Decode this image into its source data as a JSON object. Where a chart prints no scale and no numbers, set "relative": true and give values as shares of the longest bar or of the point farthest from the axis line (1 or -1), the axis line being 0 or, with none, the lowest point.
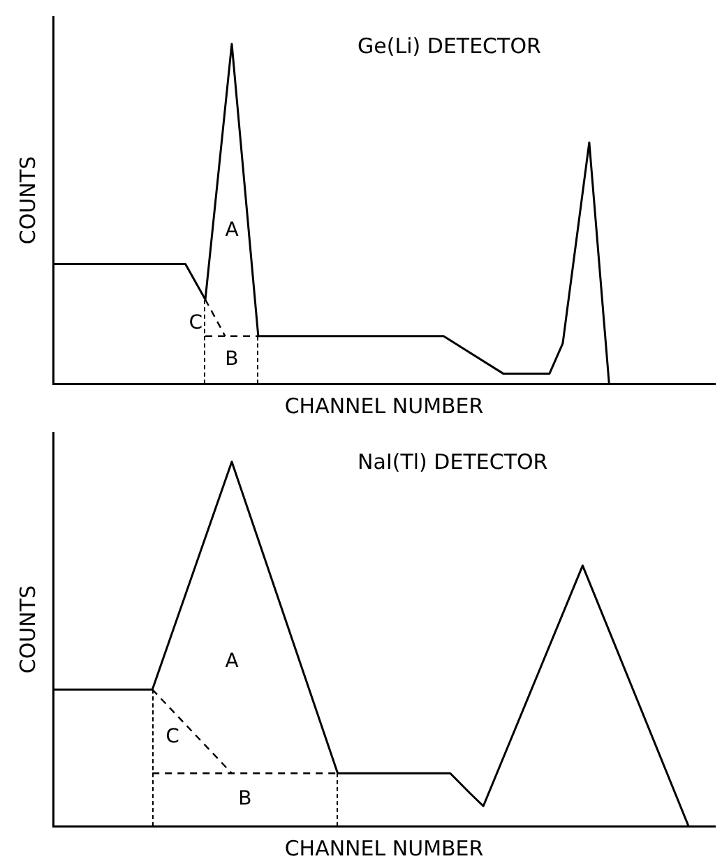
{
  "chart_data": [
    {
      "type": "line",
      "title": "Ge(Li) DETECTOR",
      "xlabel": "CHANNEL NUMBER",
      "ylabel": "COUNTS",
      "relative": true,
      "grid": false,
      "legend": false,
      "marker": "none",
      "categories": [
        null,
        null,
        null,
        null,
        null,
        null,
        null,
        null,
        null,
        null,
        null,
        null,
        null,
        null,
        null,
        null,
        null,
        null,
        null,
        null,
        null,
        null,
        null,
        null,
        null,
        null,
        null,
        null,
        null,
        null,
        null,
        null,
        null,
        null,
        null,
        null,
        null,
        null,
        null,
        null,
        null,
        null,
        null,
        null,
        null,
        null,
        null,
        null,
        null,
        null,
        null,
        null,
        null,
        null,
        null,
        null,
        null,
        null,
        null,
        null,
        null,
        null,
        null,
        null,
        null,
        null,
        null,
        null,
        null,
        null,
        null,
        null,
        null,
        null,
        null,
        null,
        null,
        null,
        null,
        null,
        null,
        null,
        null,
        null,
        null,
        null,
        null,
        null,
        null,
        null,
        null,
        null,
        null,
        null,
        null,
        null,
        null,
        null,
        null,
        null,
        null
      ],
      "series": [
        {
          "color": "#000000",
          "line_style": "solid",
          "values": [
            0.352,
            null,
            null,
            null,
            null,
            null,
            null,
            null,
            null,
            null,
            null,
            null,
            null,
            null,
            null,
            null,
            null,
            null,
            null,
            null,
            0.352,
            null,
            null,
            0.248,
            null,
            null,
            null,
            1,
            null,
            null,
            null,
            0.14,
            null,
            null,
            null,
            null,
            null,
            null,
            null,
            null,
            null,
            null,
            null,
            null,
            null,
            null,
            null,
            null,
            null,
            null,
            null,
            null,
            null,
            null,
            null,
            null,
            null,
            null,
            null,
            0.14,
            null,
            null,
            null,
            null,
            null,
            null,
            null,
            null,
            0.03,
            null,
            null,
            null,
            null,
            null,
            null,
            0.03,
            null,
            0.119,
            null,
            null,
            null,
            0.71,
            null,
            null,
            0,
            null,
            null,
            null,
            null,
            null,
            null,
            null,
            null,
            null,
            null,
            null,
            null,
            null,
            null,
            null,
            null
          ]
        },
        {
          "color": "#000000",
          "line_style": "dashed",
          "values": [
            null,
            null,
            null,
            null,
            null,
            null,
            null,
            null,
            null,
            null,
            null,
            null,
            null,
            null,
            null,
            null,
            null,
            null,
            null,
            null,
            null,
            null,
            null,
            0.248,
            null,
            null,
            0.14,
            null,
            null,
            null,
            null,
            null,
            null,
            null,
            null,
            null,
            null,
            null,
            null,
            null,
            null,
            null,
            null,
            null,
            null,
            null,
            null,
            null,
            null,
            null,
            null,
            null,
            null,
            null,
            null,
            null,
            null,
            null,
            null,
            null,
            null,
            null,
            null,
            null,
            null,
            null,
            null,
            null,
            null,
            null,
            null,
            null,
            null,
            null,
            null,
            null,
            null,
            null,
            null,
            null,
            null,
            null,
            null,
            null,
            null,
            null,
            null,
            null,
            null,
            null,
            null,
            null,
            null,
            null,
            null,
            null,
            null,
            null,
            null,
            null,
            null
          ]
        },
        {
          "color": "#000000",
          "line_style": "dashed",
          "values": [
            null,
            null,
            null,
            null,
            null,
            null,
            null,
            null,
            null,
            null,
            null,
            null,
            null,
            null,
            null,
            null,
            null,
            null,
            null,
            null,
            null,
            null,
            null,
            0.14,
            null,
            null,
            null,
            null,
            null,
            null,
            null,
            0.14,
            null,
            null,
            null,
            null,
            null,
            null,
            null,
            null,
            null,
            null,
            null,
            null,
            null,
            null,
            null,
            null,
            null,
            null,
            null,
            null,
            null,
            null,
            null,
            null,
            null,
            null,
            null,
            null,
            null,
            null,
            null,
            null,
            null,
            null,
            null,
            null,
            null,
            null,
            null,
            null,
            null,
            null,
            null,
            null,
            null,
            null,
            null,
            null,
            null,
            null,
            null,
            null,
            null,
            null,
            null,
            null,
            null,
            null,
            null,
            null,
            null,
            null,
            null,
            null,
            null,
            null,
            null,
            null,
            null
          ]
        }
      ],
      "annotations": [
        "A",
        "C",
        "B"
      ]
    },
    {
      "type": "line",
      "title": "NaI(Tl) DETECTOR",
      "xlabel": "CHANNEL NUMBER",
      "ylabel": "COUNTS",
      "relative": true,
      "grid": false,
      "legend": false,
      "marker": "none",
      "categories": [
        null,
        null,
        null,
        null,
        null,
        null,
        null,
        null,
        null,
        null,
        null,
        null,
        null,
        null,
        null,
        null,
        null,
        null,
        null,
        null,
        null,
        null,
        null,
        null,
        null,
        null,
        null,
        null,
        null,
        null,
        null,
        null,
        null,
        null,
        null,
        null,
        null,
        null,
        null,
        null,
        null,
        null,
        null,
        null,
        null,
        null,
        null,
        null,
        null,
        null,
        null,
        null,
        null,
        null,
        null,
        null,
        null,
        null,
        null,
        null,
        null,
        null,
        null,
        null,
        null,
        null,
        null,
        null,
        null,
        null,
        null,
        null,
        null,
        null,
        null,
        null,
        null,
        null,
        null,
        null,
        null,
        null,
        null,
        null,
        null,
        null,
        null,
        null,
        null,
        null,
        null,
        null,
        null,
        null,
        null,
        null,
        null,
        null,
        null,
        null,
        null
      ],
      "series": [
        {
          "color": "#000000",
          "line_style": "solid",
          "values": [
            0.375,
            null,
            null,
            null,
            null,
            null,
            null,
            null,
            null,
            null,
            null,
            null,
            null,
            null,
            null,
            0.375,
            null,
            null,
            null,
            null,
            null,
            null,
            null,
            null,
            null,
            null,
            null,
            1,
            null,
            null,
            null,
            null,
            null,
            null,
            null,
            null,
            null,
            null,
            null,
            null,
            null,
            null,
            null,
            0.145,
            null,
            null,
            null,
            null,
            null,
            null,
            null,
            null,
            null,
            null,
            null,
            null,
            null,
            null,
            null,
            null,
            0.145,
            null,
            null,
            0.09,
            null,
            0.055,
            null,
            null,
            null,
            null,
            null,
            null,
            null,
            null,
            null,
            null,
            null,
            null,
            null,
            null,
            0.715,
            null,
            null,
            null,
            null,
            null,
            null,
            null,
            null,
            null,
            null,
            null,
            null,
            null,
            null,
            null,
            0,
            null,
            null,
            null,
            null
          ]
        },
        {
          "color": "#000000",
          "line_style": "dashed",
          "values": [
            null,
            null,
            null,
            null,
            null,
            null,
            null,
            null,
            null,
            null,
            null,
            null,
            null,
            null,
            null,
            0.375,
            null,
            null,
            null,
            null,
            null,
            null,
            null,
            null,
            null,
            null,
            null,
            0.145,
            null,
            null,
            null,
            null,
            null,
            null,
            null,
            null,
            null,
            null,
            null,
            null,
            null,
            null,
            null,
            null,
            null,
            null,
            null,
            null,
            null,
            null,
            null,
            null,
            null,
            null,
            null,
            null,
            null,
            null,
            null,
            null,
            null,
            null,
            null,
            null,
            null,
            null,
            null,
            null,
            null,
            null,
            null,
            null,
            null,
            null,
            null,
            null,
            null,
            null,
            null,
            null,
            null,
            null,
            null,
            null,
            null,
            null,
            null,
            null,
            null,
            null,
            null,
            null,
            null,
            null,
            null,
            null,
            null,
            null,
            null,
            null,
            null
          ]
        },
        {
          "color": "#000000",
          "line_style": "dashed",
          "values": [
            null,
            null,
            null,
            null,
            null,
            null,
            null,
            null,
            null,
            null,
            null,
            null,
            null,
            null,
            null,
            0.145,
            null,
            null,
            null,
            null,
            null,
            null,
            null,
            null,
            null,
            null,
            null,
            null,
            null,
            null,
            null,
            null,
            null,
            null,
            null,
            null,
            null,
            null,
            null,
            null,
            null,
            null,
            null,
            0.145,
            null,
            null,
            null,
            null,
            null,
            null,
            null,
            null,
            null,
            null,
            null,
            null,
            null,
            null,
            null,
            null,
            null,
            null,
            null,
            null,
            null,
            null,
            null,
            null,
            null,
            null,
            null,
            null,
            null,
            null,
            null,
            null,
            null,
            null,
            null,
            null,
            null,
            null,
            null,
            null,
            null,
            null,
            null,
            null,
            null,
            null,
            null,
            null,
            null,
            null,
            null,
            null,
            null,
            null,
            null,
            null,
            null
          ]
        }
      ],
      "annotations": [
        "A",
        "C",
        "B"
      ]
    }
  ]
}
